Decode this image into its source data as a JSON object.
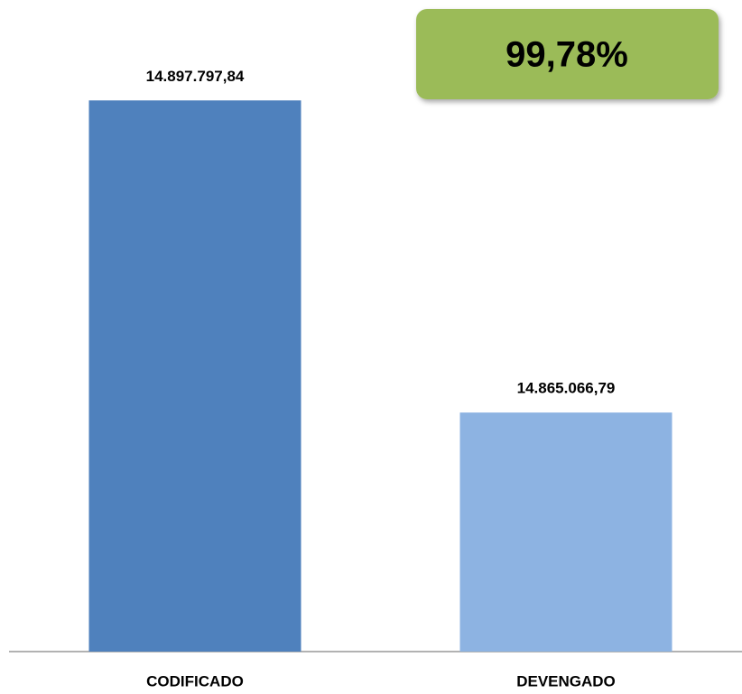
{
  "chart_data": {
    "type": "bar",
    "categories": [
      "CODIFICADO",
      "DEVENGADO"
    ],
    "values": [
      14897797.84,
      14865066.79
    ],
    "value_labels": [
      "14.897.797,84",
      "14.865.066,79"
    ],
    "colors": [
      "#4f81bd",
      "#8db3e2"
    ],
    "ylim": [
      14840000,
      14900000
    ],
    "annotation": "99,78%",
    "annotation_color": "#9bbb59"
  }
}
